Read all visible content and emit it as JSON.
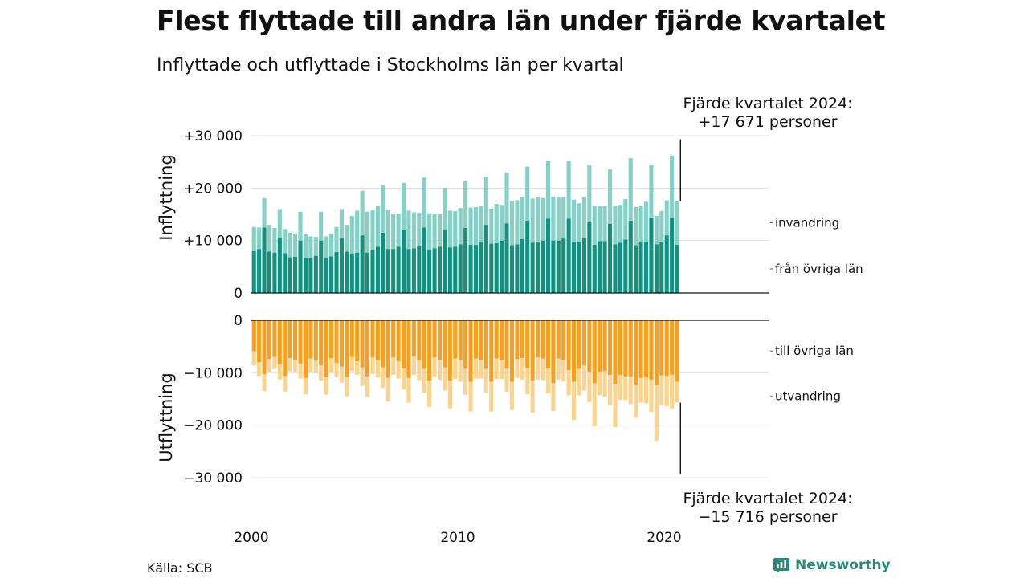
{
  "title": "Flest flyttade till andra län under fjärde kvartalet",
  "subtitle": "Inflyttade och utflyttade i Stockholms län per kvartal",
  "source": "Källa: SCB",
  "brand": "Newsworthy",
  "colors": {
    "from_other_counties": "#13917f",
    "immigration": "#86d1c5",
    "to_other_counties": "#f5a020",
    "emigration": "#fad48e",
    "grid": "#e0e0e0",
    "brand": "#2a8a7a"
  },
  "chart_data": {
    "type": "bar",
    "stacked": true,
    "x_ticks": [
      {
        "year": 2000,
        "label": "2000"
      },
      {
        "year": 2010,
        "label": "2010"
      },
      {
        "year": 2020,
        "label": "2020"
      }
    ],
    "in_panel": {
      "ylabel": "Inflyttning",
      "ylim": [
        0,
        30000
      ],
      "ticks": [
        {
          "value": 0,
          "label": "0"
        },
        {
          "value": 10000,
          "label": "+10 000"
        },
        {
          "value": 20000,
          "label": "+20 000"
        },
        {
          "value": 30000,
          "label": "+30 000"
        }
      ],
      "annotation": [
        "Fjärde kvartalet 2024:",
        "+17 671 personer"
      ],
      "series": [
        {
          "name": "från övriga län",
          "values": [
            8000,
            8400,
            12500,
            7900,
            7700,
            10500,
            7600,
            6800,
            6900,
            10000,
            6700,
            6700,
            7100,
            10000,
            6700,
            7000,
            7800,
            10400,
            7900,
            7400,
            7700,
            11000,
            7700,
            8200,
            8800,
            11500,
            8400,
            8400,
            8800,
            12000,
            8400,
            8500,
            8900,
            12500,
            8200,
            8500,
            8800,
            12000,
            8700,
            8800,
            9300,
            12400,
            9200,
            9200,
            9800,
            13000,
            9400,
            9500,
            10000,
            13300,
            9100,
            9300,
            10300,
            13800,
            9600,
            9800,
            10000,
            14200,
            10000,
            10000,
            10400,
            14200,
            9800,
            9700,
            10600,
            13500,
            9200,
            9900,
            9900,
            13200,
            9300,
            9600,
            10200,
            13800,
            9100,
            9800,
            9800,
            14300,
            9300,
            9800,
            11000,
            14300,
            9200
          ]
        },
        {
          "name": "invandring",
          "values": [
            4600,
            4100,
            5600,
            5100,
            4700,
            5500,
            4600,
            4700,
            4500,
            5500,
            4500,
            4100,
            3600,
            5500,
            4100,
            4300,
            4800,
            5600,
            5100,
            7300,
            8000,
            8500,
            7800,
            7600,
            7900,
            9000,
            7400,
            6700,
            6300,
            9000,
            7300,
            6900,
            6400,
            9500,
            7000,
            6600,
            6200,
            8000,
            7000,
            6800,
            6900,
            9000,
            7100,
            7200,
            6800,
            9200,
            6700,
            7500,
            6800,
            9700,
            8500,
            8400,
            8000,
            10300,
            8400,
            8400,
            8100,
            10900,
            8400,
            8200,
            7900,
            11000,
            8000,
            7400,
            7700,
            10800,
            7500,
            6600,
            6700,
            10400,
            7300,
            7200,
            7700,
            11900,
            7300,
            6800,
            7600,
            10200,
            5400,
            5800,
            6700,
            11900,
            8400
          ]
        }
      ]
    },
    "out_panel": {
      "ylabel": "Utflyttning",
      "ylim": [
        -30000,
        0
      ],
      "ticks": [
        {
          "value": 0,
          "label": "0"
        },
        {
          "value": -10000,
          "label": "−10 000"
        },
        {
          "value": -20000,
          "label": "−20 000"
        },
        {
          "value": -30000,
          "label": "−30 000"
        }
      ],
      "annotation": [
        "Fjärde kvartalet 2024:",
        "−15 716 personer"
      ],
      "series": [
        {
          "name": "till övriga län",
          "values": [
            -5900,
            -8000,
            -10300,
            -7400,
            -7000,
            -8400,
            -10600,
            -7200,
            -7500,
            -8300,
            -11000,
            -7300,
            -7600,
            -8600,
            -10900,
            -7200,
            -8100,
            -8800,
            -10800,
            -7000,
            -7800,
            -9000,
            -10700,
            -7100,
            -7700,
            -9000,
            -11000,
            -7100,
            -7800,
            -9200,
            -11000,
            -6900,
            -7700,
            -9300,
            -11500,
            -7100,
            -7600,
            -9000,
            -11500,
            -7300,
            -7600,
            -9300,
            -11700,
            -7300,
            -7500,
            -9300,
            -11700,
            -7300,
            -7600,
            -9200,
            -11700,
            -7400,
            -7200,
            -9100,
            -11500,
            -7100,
            -7300,
            -9200,
            -12000,
            -7300,
            -7600,
            -9500,
            -11700,
            -9300,
            -8600,
            -9800,
            -12000,
            -9900,
            -9700,
            -10400,
            -12100,
            -10400,
            -10700,
            -10700,
            -12300,
            -11000,
            -10900,
            -11300,
            -12400,
            -10500,
            -10600,
            -10400,
            -11700
          ]
        },
        {
          "name": "utvandring",
          "values": [
            -2700,
            -2600,
            -3200,
            -2400,
            -2300,
            -2900,
            -3000,
            -2500,
            -2400,
            -2800,
            -3100,
            -2500,
            -2500,
            -2900,
            -3300,
            -2600,
            -2700,
            -3100,
            -3700,
            -2700,
            -2600,
            -3500,
            -3900,
            -3100,
            -3200,
            -3900,
            -4500,
            -3300,
            -3300,
            -4000,
            -4700,
            -3500,
            -3700,
            -4500,
            -5000,
            -3600,
            -3800,
            -4400,
            -5300,
            -3900,
            -4100,
            -4900,
            -5700,
            -3800,
            -3600,
            -4500,
            -5700,
            -3900,
            -3600,
            -4400,
            -5400,
            -3600,
            -4100,
            -5000,
            -6100,
            -4200,
            -4100,
            -4800,
            -5300,
            -4000,
            -4000,
            -4800,
            -7300,
            -5000,
            -4800,
            -5800,
            -8200,
            -4400,
            -4900,
            -5800,
            -8300,
            -4800,
            -4500,
            -5300,
            -6300,
            -4700,
            -4900,
            -6200,
            -10600,
            -5700,
            -5800,
            -6400,
            -4000
          ]
        }
      ]
    },
    "legend_placement": "right",
    "grid": true
  }
}
